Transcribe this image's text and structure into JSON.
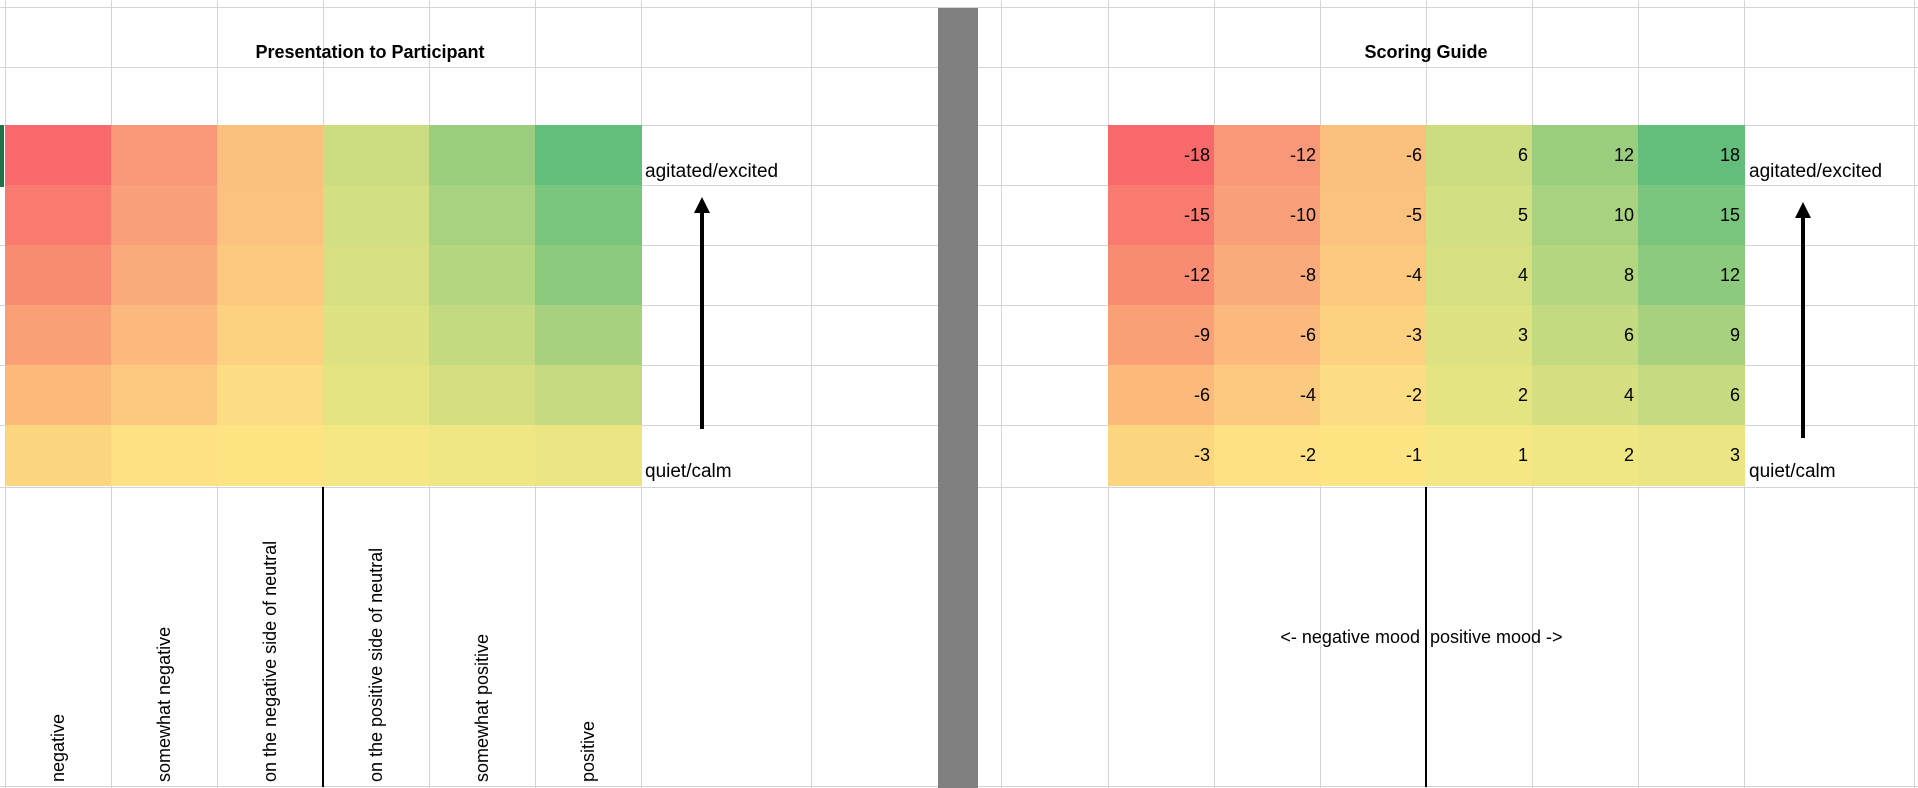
{
  "left_panel": {
    "title": "Presentation to Participant",
    "top_label": "agitated/excited",
    "bottom_label": "quiet/calm",
    "column_labels": [
      "negative",
      "somewhat negative",
      "on the negative side of neutral",
      "on the positive side of neutral",
      "somewhat positive",
      "positive"
    ],
    "colors": [
      [
        "#f8696b",
        "#f99779",
        "#fbbf7e",
        "#cbdc81",
        "#9bcd7f",
        "#63be7b"
      ],
      [
        "#f97b6f",
        "#f9a07b",
        "#fbc17f",
        "#d2df82",
        "#a8d280",
        "#7ac57d"
      ],
      [
        "#f98b73",
        "#faab7c",
        "#fcc97f",
        "#d6e082",
        "#b5d680",
        "#8ccb7e"
      ],
      [
        "#f9a076",
        "#fbb97d",
        "#fcd281",
        "#dde282",
        "#c4da81",
        "#a7d17f"
      ],
      [
        "#fbba7b",
        "#fcca7f",
        "#fddd83",
        "#e4e483",
        "#d5df82",
        "#c6db81"
      ],
      [
        "#fcd57f",
        "#fde182",
        "#fee483",
        "#f4e784",
        "#efe684",
        "#ebe583"
      ]
    ]
  },
  "right_panel": {
    "title": "Scoring Guide",
    "top_label": "agitated/excited",
    "bottom_label": "quiet/calm",
    "negative_mood_label": "<- negative mood",
    "positive_mood_label": "positive mood ->",
    "values": [
      [
        "-18",
        "-12",
        "-6",
        "6",
        "12",
        "18"
      ],
      [
        "-15",
        "-10",
        "-5",
        "5",
        "10",
        "15"
      ],
      [
        "-12",
        "-8",
        "-4",
        "4",
        "8",
        "12"
      ],
      [
        "-9",
        "-6",
        "-3",
        "3",
        "6",
        "9"
      ],
      [
        "-6",
        "-4",
        "-2",
        "2",
        "4",
        "6"
      ],
      [
        "-3",
        "-2",
        "-1",
        "1",
        "2",
        "3"
      ]
    ],
    "colors": [
      [
        "#f8696b",
        "#f99779",
        "#fbbf7e",
        "#cbdc81",
        "#9bcd7f",
        "#63be7b"
      ],
      [
        "#f97b6f",
        "#f9a07b",
        "#fbc17f",
        "#d2df82",
        "#a8d280",
        "#7ac57d"
      ],
      [
        "#f98b73",
        "#faab7c",
        "#fcc97f",
        "#d6e082",
        "#b5d680",
        "#8ccb7e"
      ],
      [
        "#f9a076",
        "#fbb97d",
        "#fcd281",
        "#dde282",
        "#c4da81",
        "#a7d17f"
      ],
      [
        "#fbba7b",
        "#fcca7f",
        "#fddd83",
        "#e4e483",
        "#d5df82",
        "#c6db81"
      ],
      [
        "#fcd57f",
        "#fde182",
        "#fee483",
        "#f4e784",
        "#efe684",
        "#ebe583"
      ]
    ]
  },
  "colors": {
    "divider": "#808080",
    "gridline": "#d4d4d4",
    "selection_marker": "#217346"
  }
}
